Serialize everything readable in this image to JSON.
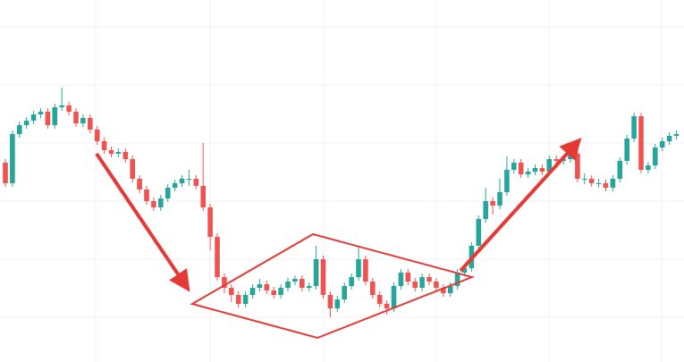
{
  "chart_data": {
    "type": "candlestick",
    "up_color": "#26a69a",
    "down_color": "#ef5350",
    "ylim": [
      0,
      400
    ],
    "yticks": [
      45,
      110,
      175,
      240,
      305,
      370
    ],
    "grid": true,
    "open": [
      218,
      195,
      250,
      260,
      265,
      272,
      275,
      260,
      280,
      282,
      275,
      262,
      268,
      255,
      242,
      232,
      228,
      230,
      222,
      200,
      188,
      175,
      168,
      178,
      190,
      195,
      200,
      200,
      192,
      168,
      135,
      90,
      78,
      70,
      60,
      70,
      78,
      82,
      75,
      70,
      78,
      85,
      88,
      78,
      80,
      110,
      70,
      55,
      65,
      80,
      90,
      110,
      85,
      70,
      60,
      55,
      80,
      95,
      85,
      78,
      90,
      85,
      78,
      72,
      80,
      95,
      100,
      125,
      155,
      175,
      170,
      185,
      210,
      218,
      205,
      208,
      212,
      208,
      222,
      220,
      222,
      228,
      200,
      200,
      195,
      195,
      190,
      200,
      220,
      245,
      270,
      210,
      215,
      235,
      242,
      248
    ],
    "high": [
      222,
      254,
      264,
      269,
      276,
      279,
      279,
      284,
      302,
      286,
      279,
      272,
      272,
      259,
      246,
      236,
      234,
      234,
      226,
      204,
      192,
      179,
      182,
      194,
      199,
      204,
      210,
      204,
      240,
      172,
      139,
      94,
      82,
      74,
      74,
      82,
      88,
      86,
      79,
      82,
      89,
      92,
      92,
      84,
      125,
      114,
      74,
      69,
      84,
      94,
      125,
      114,
      89,
      74,
      64,
      84,
      99,
      99,
      89,
      94,
      94,
      89,
      82,
      84,
      99,
      104,
      129,
      159,
      190,
      179,
      200,
      225,
      222,
      222,
      212,
      216,
      216,
      226,
      226,
      226,
      232,
      232,
      206,
      204,
      200,
      199,
      204,
      224,
      249,
      274,
      274,
      219,
      239,
      246,
      252,
      254
    ],
    "low": [
      191,
      191,
      246,
      256,
      261,
      268,
      256,
      256,
      276,
      271,
      258,
      258,
      251,
      238,
      228,
      224,
      224,
      218,
      196,
      184,
      171,
      164,
      164,
      174,
      186,
      191,
      192,
      188,
      164,
      120,
      86,
      72,
      62,
      56,
      56,
      66,
      74,
      71,
      66,
      66,
      74,
      81,
      74,
      74,
      76,
      66,
      45,
      51,
      61,
      76,
      86,
      81,
      66,
      56,
      48,
      51,
      76,
      81,
      74,
      74,
      81,
      74,
      68,
      68,
      76,
      91,
      96,
      121,
      151,
      160,
      166,
      181,
      206,
      201,
      201,
      204,
      204,
      204,
      216,
      216,
      218,
      196,
      194,
      191,
      190,
      186,
      186,
      196,
      216,
      241,
      206,
      206,
      211,
      231,
      238,
      244
    ],
    "close": [
      195,
      250,
      260,
      265,
      272,
      275,
      260,
      280,
      282,
      275,
      262,
      268,
      255,
      242,
      232,
      228,
      230,
      222,
      200,
      188,
      175,
      168,
      178,
      190,
      195,
      200,
      200,
      192,
      168,
      135,
      90,
      78,
      70,
      60,
      70,
      78,
      82,
      75,
      70,
      78,
      85,
      88,
      78,
      80,
      110,
      70,
      55,
      65,
      80,
      90,
      110,
      85,
      70,
      60,
      55,
      80,
      95,
      85,
      78,
      90,
      85,
      78,
      72,
      80,
      95,
      100,
      125,
      155,
      175,
      170,
      185,
      210,
      218,
      205,
      208,
      212,
      208,
      222,
      220,
      222,
      228,
      200,
      200,
      195,
      195,
      190,
      200,
      220,
      245,
      270,
      210,
      215,
      235,
      242,
      248,
      250
    ]
  }
}
